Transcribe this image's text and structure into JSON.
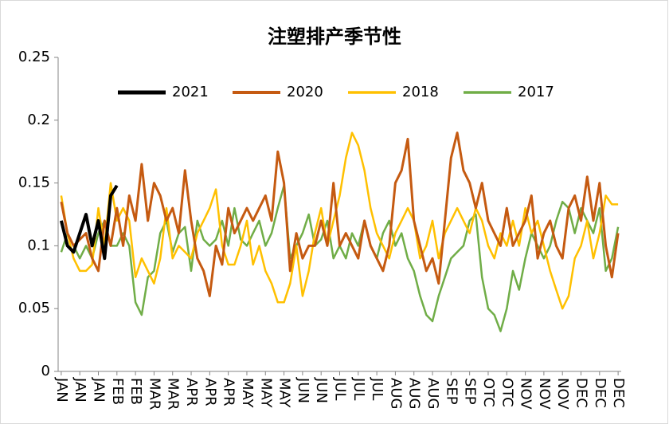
{
  "chart_data": {
    "type": "line",
    "title": "注塑排产季节性",
    "categories": [
      "JAN",
      null,
      null,
      "JAN",
      null,
      null,
      "JAN",
      null,
      null,
      "FEB",
      null,
      null,
      "FEB",
      null,
      null,
      "MAR",
      null,
      null,
      "MAR",
      null,
      null,
      "APR",
      null,
      null,
      "APR",
      null,
      null,
      "APR",
      null,
      null,
      "MAY",
      null,
      null,
      "MAY",
      null,
      null,
      "MAY",
      null,
      null,
      "JUN",
      null,
      null,
      "JUN",
      null,
      null,
      "JUL",
      null,
      null,
      "JUL",
      null,
      null,
      "JUL",
      null,
      null,
      "AUG",
      null,
      null,
      "AUG",
      null,
      null,
      "AUG",
      null,
      null,
      "SEP",
      null,
      null,
      "SEP",
      null,
      null,
      "OTC",
      null,
      null,
      "OTC",
      null,
      null,
      "NOV",
      null,
      null,
      "NOV",
      null,
      null,
      "NOV",
      null,
      null,
      "DEC",
      null,
      null,
      "DEC",
      null,
      null,
      "DEC"
    ],
    "series": [
      {
        "name": "2021",
        "color": "#000000",
        "width": 4,
        "values": [
          0.12,
          0.1,
          0.095,
          0.11,
          0.125,
          0.1,
          0.12,
          0.09,
          0.14,
          0.148,
          null,
          null,
          null,
          null,
          null,
          null,
          null,
          null,
          null,
          null,
          null,
          null,
          null,
          null,
          null,
          null,
          null,
          null,
          null,
          null,
          null,
          null,
          null,
          null,
          null,
          null,
          null,
          null,
          null,
          null,
          null,
          null,
          null,
          null,
          null,
          null,
          null,
          null,
          null,
          null,
          null,
          null,
          null,
          null,
          null,
          null,
          null,
          null,
          null,
          null,
          null,
          null,
          null,
          null,
          null,
          null,
          null,
          null,
          null,
          null,
          null,
          null,
          null,
          null,
          null,
          null,
          null,
          null,
          null,
          null,
          null,
          null,
          null,
          null,
          null,
          null,
          null,
          null,
          null,
          null,
          null
        ]
      },
      {
        "name": "2020",
        "color": "#c55a11",
        "width": 3,
        "values": [
          0.135,
          0.11,
          0.1,
          0.105,
          0.11,
          0.09,
          0.08,
          0.12,
          0.1,
          0.13,
          0.1,
          0.14,
          0.12,
          0.165,
          0.12,
          0.15,
          0.14,
          0.12,
          0.13,
          0.11,
          0.16,
          0.12,
          0.09,
          0.08,
          0.06,
          0.1,
          0.085,
          0.13,
          0.11,
          0.12,
          0.13,
          0.12,
          0.13,
          0.14,
          0.12,
          0.175,
          0.15,
          0.08,
          0.11,
          0.09,
          0.1,
          0.1,
          0.12,
          0.1,
          0.15,
          0.1,
          0.11,
          0.1,
          0.09,
          0.12,
          0.1,
          0.09,
          0.08,
          0.1,
          0.15,
          0.16,
          0.185,
          0.12,
          0.1,
          0.08,
          0.09,
          0.07,
          0.12,
          0.17,
          0.19,
          0.16,
          0.15,
          0.13,
          0.15,
          0.12,
          0.11,
          0.1,
          0.13,
          0.1,
          0.11,
          0.12,
          0.14,
          0.09,
          0.11,
          0.12,
          0.1,
          0.09,
          0.13,
          0.14,
          0.12,
          0.155,
          0.12,
          0.15,
          0.1,
          0.075,
          0.11
        ]
      },
      {
        "name": "2018",
        "color": "#ffc000",
        "width": 2.5,
        "values": [
          0.14,
          0.11,
          0.09,
          0.08,
          0.08,
          0.085,
          0.13,
          0.1,
          0.15,
          0.12,
          0.13,
          0.12,
          0.075,
          0.09,
          0.08,
          0.07,
          0.09,
          0.13,
          0.09,
          0.1,
          0.095,
          0.09,
          0.11,
          0.12,
          0.13,
          0.145,
          0.1,
          0.085,
          0.085,
          0.1,
          0.12,
          0.085,
          0.1,
          0.08,
          0.07,
          0.055,
          0.055,
          0.07,
          0.1,
          0.06,
          0.08,
          0.11,
          0.13,
          0.1,
          0.12,
          0.14,
          0.17,
          0.19,
          0.18,
          0.16,
          0.13,
          0.11,
          0.1,
          0.09,
          0.11,
          0.12,
          0.13,
          0.12,
          0.09,
          0.1,
          0.12,
          0.09,
          0.11,
          0.12,
          0.13,
          0.12,
          0.11,
          0.13,
          0.12,
          0.1,
          0.09,
          0.11,
          0.1,
          0.12,
          0.1,
          0.13,
          0.11,
          0.12,
          0.1,
          0.08,
          0.065,
          0.05,
          0.06,
          0.09,
          0.1,
          0.12,
          0.09,
          0.11,
          0.14,
          0.133,
          0.133
        ]
      },
      {
        "name": "2017",
        "color": "#70ad47",
        "width": 2.5,
        "values": [
          0.095,
          0.11,
          0.1,
          0.09,
          0.1,
          0.09,
          0.11,
          0.12,
          0.1,
          0.1,
          0.11,
          0.1,
          0.055,
          0.045,
          0.075,
          0.08,
          0.11,
          0.12,
          0.095,
          0.11,
          0.115,
          0.08,
          0.12,
          0.105,
          0.1,
          0.105,
          0.12,
          0.1,
          0.13,
          0.105,
          0.1,
          0.11,
          0.12,
          0.1,
          0.11,
          0.13,
          0.148,
          0.09,
          0.1,
          0.11,
          0.125,
          0.1,
          0.105,
          0.12,
          0.09,
          0.1,
          0.09,
          0.11,
          0.1,
          0.12,
          0.1,
          0.09,
          0.11,
          0.12,
          0.1,
          0.11,
          0.09,
          0.08,
          0.06,
          0.045,
          0.04,
          0.06,
          0.075,
          0.09,
          0.095,
          0.1,
          0.12,
          0.125,
          0.075,
          0.05,
          0.045,
          0.032,
          0.05,
          0.08,
          0.065,
          0.09,
          0.11,
          0.1,
          0.09,
          0.1,
          0.12,
          0.135,
          0.13,
          0.11,
          0.13,
          0.12,
          0.11,
          0.13,
          0.08,
          0.09,
          0.115
        ]
      }
    ],
    "ylim": [
      0,
      0.25
    ],
    "yticks": [
      0,
      0.05,
      0.1,
      0.15,
      0.2,
      0.25
    ],
    "legend": "top",
    "grid": false
  }
}
